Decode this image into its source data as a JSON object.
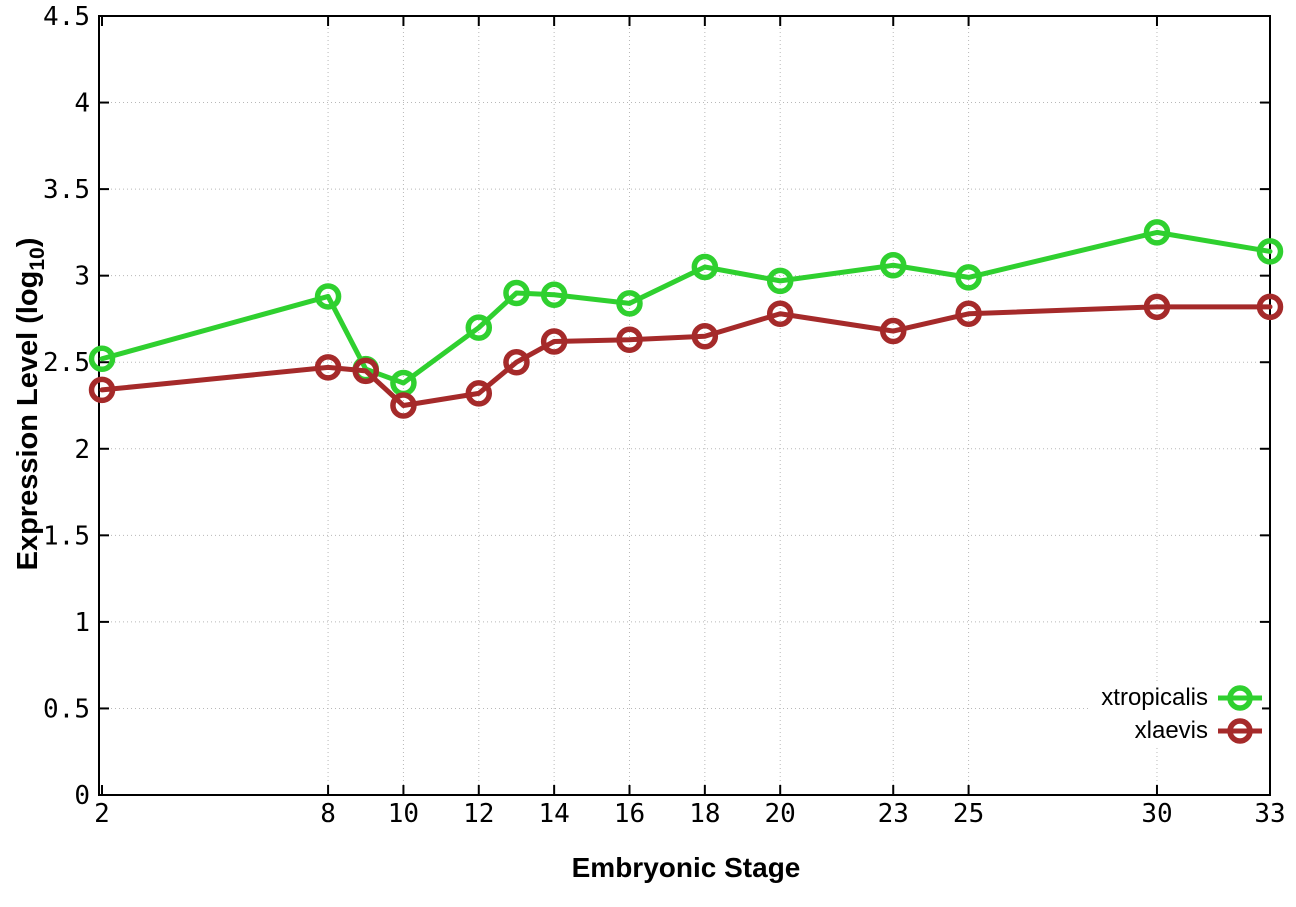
{
  "figure": {
    "background": "#ffffff",
    "axis_color": "#000000",
    "grid_color": "#b8b8b8"
  },
  "chart_data": {
    "type": "line",
    "title": "",
    "xlabel": "Embryonic Stage",
    "ylabel": "Expression Level (log10)",
    "ylabel_parts": {
      "prefix": "Expression Level (log",
      "subscript": "10",
      "suffix": ")"
    },
    "x": [
      2,
      8,
      9,
      10,
      12,
      13,
      14,
      16,
      18,
      20,
      23,
      25,
      30,
      33
    ],
    "series": [
      {
        "name": "xtropicalis",
        "color": "#2fd02f",
        "values": [
          2.52,
          2.88,
          2.46,
          2.38,
          2.7,
          2.9,
          2.89,
          2.84,
          3.05,
          2.97,
          3.06,
          2.99,
          3.25,
          3.14
        ]
      },
      {
        "name": "xlaevis",
        "color": "#a52a2a",
        "values": [
          2.34,
          2.47,
          2.45,
          2.25,
          2.32,
          2.5,
          2.62,
          2.63,
          2.65,
          2.78,
          2.68,
          2.78,
          2.82,
          2.82
        ]
      }
    ],
    "xlim": [
      1.92,
      33
    ],
    "ylim": [
      0,
      4.5
    ],
    "x_ticks": {
      "values": [
        2,
        8,
        10,
        12,
        14,
        16,
        18,
        20,
        23,
        25,
        30,
        33
      ],
      "labels": [
        "2",
        "8",
        "10",
        "12",
        "14",
        "16",
        "18",
        "20",
        "23",
        "25",
        "30",
        "33"
      ]
    },
    "y_ticks": {
      "values": [
        0,
        0.5,
        1,
        1.5,
        2,
        2.5,
        3,
        3.5,
        4,
        4.5
      ],
      "labels": [
        "0",
        "0.5",
        "1",
        "1.5",
        "2",
        "2.5",
        "3",
        "3.5",
        "4",
        "4.5"
      ]
    },
    "grid": "dotted",
    "legend_position": "bottom-right-inside",
    "marker": "open-circle"
  }
}
